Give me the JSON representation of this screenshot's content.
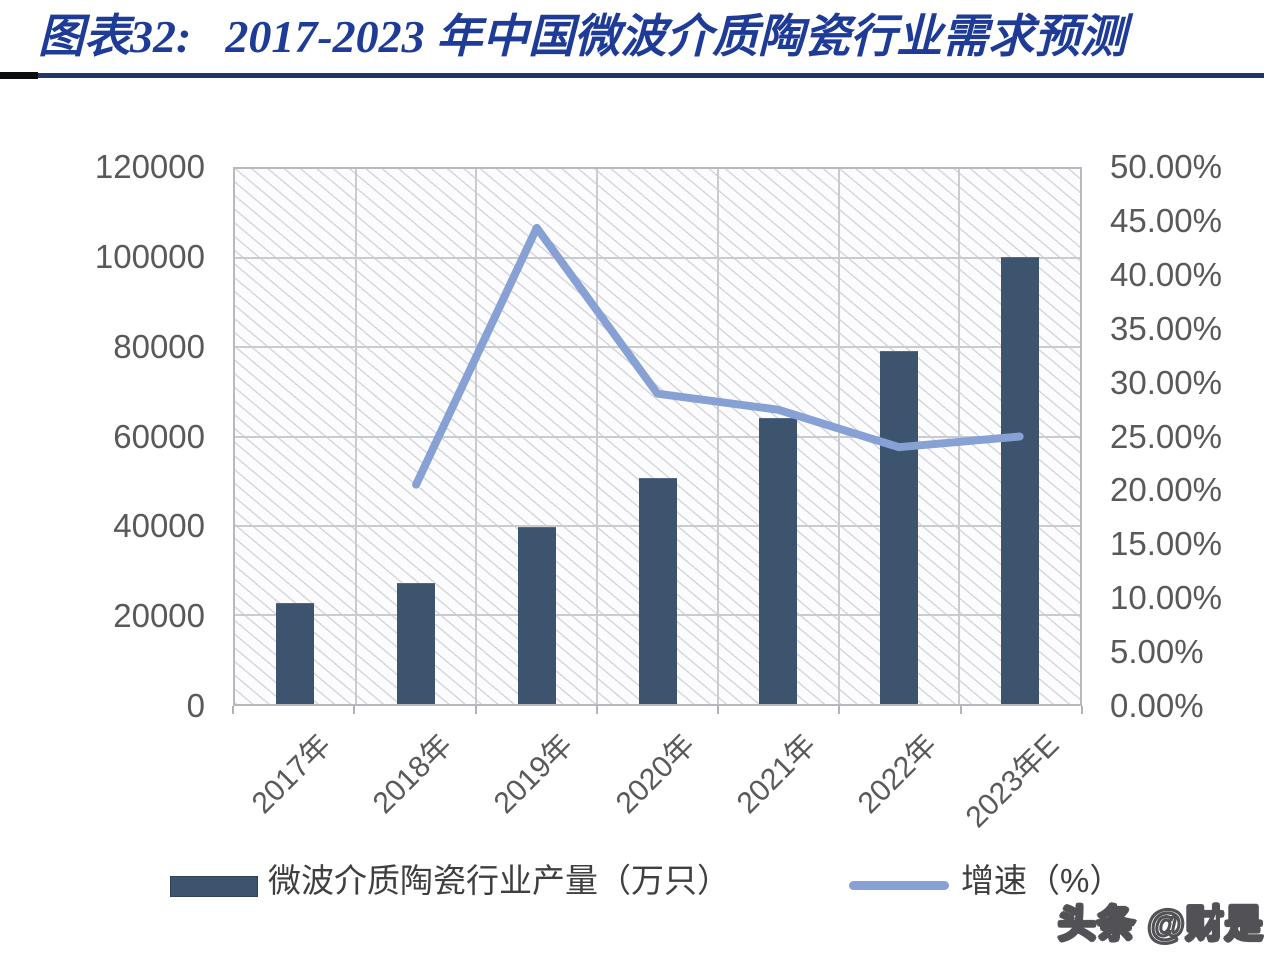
{
  "page": {
    "title_prefix": "图表32:",
    "title_main": "2017-2023 年中国微波介质陶瓷行业需求预测",
    "watermark": "头条 @财是"
  },
  "colors": {
    "title": "#1d3b97",
    "rule": "#1f3864",
    "bar": "#3d546f",
    "line": "#88a1d4",
    "axis_text": "#595959"
  },
  "chart_data": {
    "type": "combo",
    "title": "2017-2023 年中国微波介质陶瓷行业需求预测",
    "categories": [
      "2017年",
      "2018年",
      "2019年",
      "2020年",
      "2021年",
      "2022年",
      "2023年E"
    ],
    "series": [
      {
        "name": "微波介质陶瓷行业产量（万只）",
        "type": "bar",
        "axis": "left",
        "values": [
          22500,
          27000,
          39500,
          50500,
          64000,
          79000,
          100000
        ]
      },
      {
        "name": "增速（%）",
        "type": "line",
        "axis": "right",
        "values": [
          null,
          20.5,
          44.5,
          29.0,
          27.5,
          24.0,
          25.0
        ]
      }
    ],
    "left_axis": {
      "min": 0,
      "max": 120000,
      "step": 20000,
      "labels": [
        "120000",
        "100000",
        "80000",
        "60000",
        "40000",
        "20000",
        "0"
      ]
    },
    "right_axis": {
      "min": 0,
      "max": 50,
      "step": 5,
      "labels": [
        "50.00%",
        "45.00%",
        "40.00%",
        "35.00%",
        "30.00%",
        "25.00%",
        "20.00%",
        "15.00%",
        "10.00%",
        "5.00%",
        "0.00%"
      ]
    },
    "grid": true,
    "legend_position": "bottom",
    "plot_background": "diagonal-hatch"
  }
}
